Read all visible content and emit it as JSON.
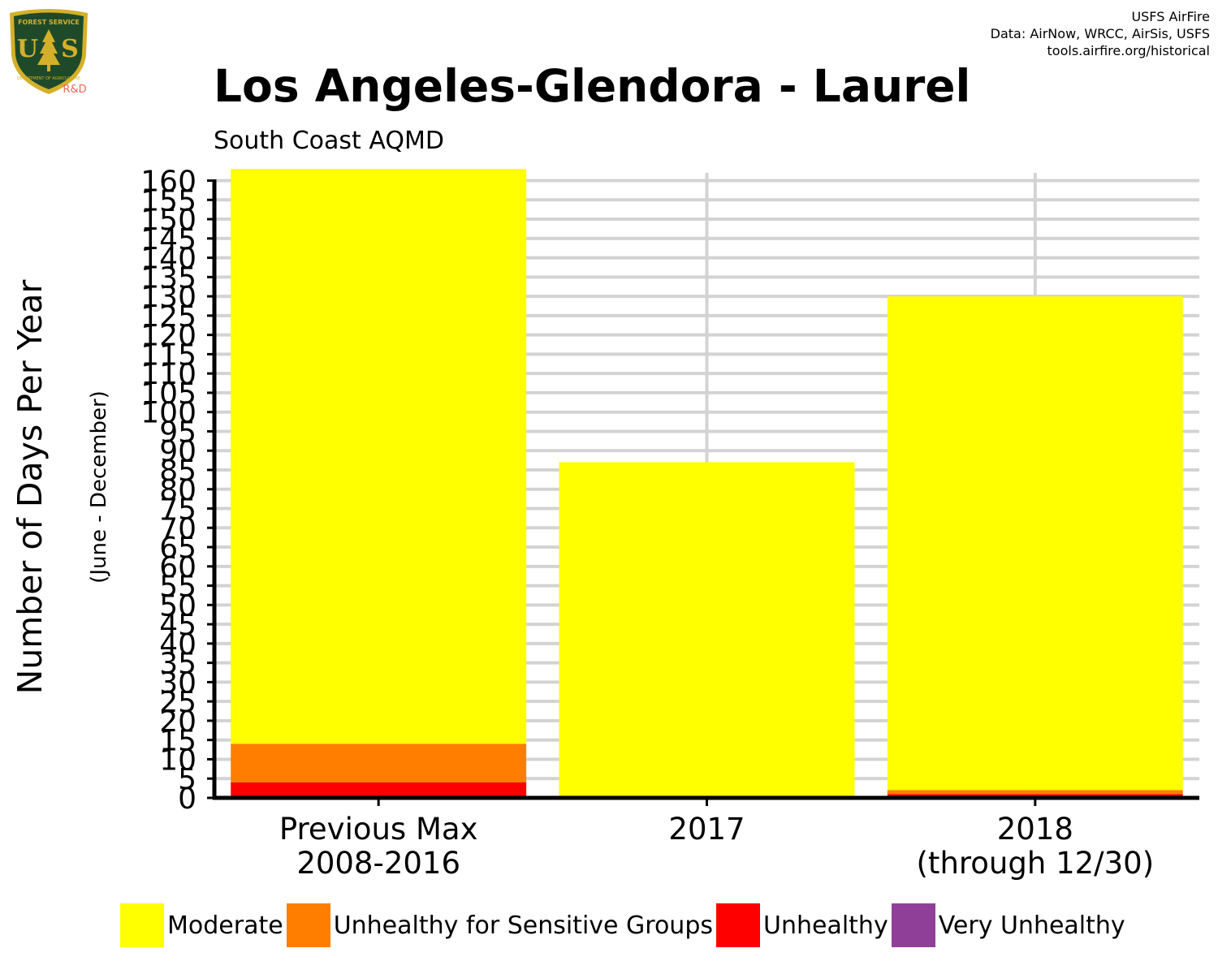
{
  "credit": {
    "line1": "USFS AirFire",
    "line2": "Data: AirNow, WRCC, AirSis, USFS",
    "line3": "tools.airfire.org/historical"
  },
  "logo": {
    "top_text": "FOREST SERVICE",
    "letters_left": "U",
    "letters_right": "S",
    "bottom_text": "DEPARTMENT OF AGRICULTURE",
    "rd_label": "R&D",
    "colors": {
      "shield": "#1f4a2a",
      "trim": "#d4b02a",
      "rd": "#e8685a"
    }
  },
  "chart_data": {
    "type": "bar",
    "stacked": true,
    "title": "Los Angeles-Glendora - Laurel",
    "subtitle": "South Coast AQMD",
    "ylabel": "Number of Days Per Year",
    "ylabel_sub": "(June - December)",
    "ylim": [
      0,
      162
    ],
    "yticks": [
      0,
      5,
      10,
      15,
      20,
      25,
      30,
      35,
      40,
      45,
      50,
      55,
      60,
      65,
      70,
      75,
      80,
      85,
      90,
      95,
      100,
      105,
      110,
      115,
      120,
      125,
      130,
      135,
      140,
      145,
      150,
      155,
      160
    ],
    "categories": [
      [
        "Previous Max",
        "2008-2016"
      ],
      [
        "2017"
      ],
      [
        "2018",
        "(through 12/30)"
      ]
    ],
    "series": [
      {
        "name": "Moderate",
        "color": "#ffff00",
        "values": [
          149,
          87,
          128
        ]
      },
      {
        "name": "Unhealthy for Sensitive Groups",
        "color": "#ff7e00",
        "values": [
          10,
          0,
          1
        ]
      },
      {
        "name": "Unhealthy",
        "color": "#ff0000",
        "values": [
          4,
          0,
          1
        ]
      },
      {
        "name": "Very Unhealthy",
        "color": "#8f3f97",
        "values": [
          0,
          0,
          0
        ]
      }
    ],
    "grid": true,
    "legend_position": "bottom"
  }
}
